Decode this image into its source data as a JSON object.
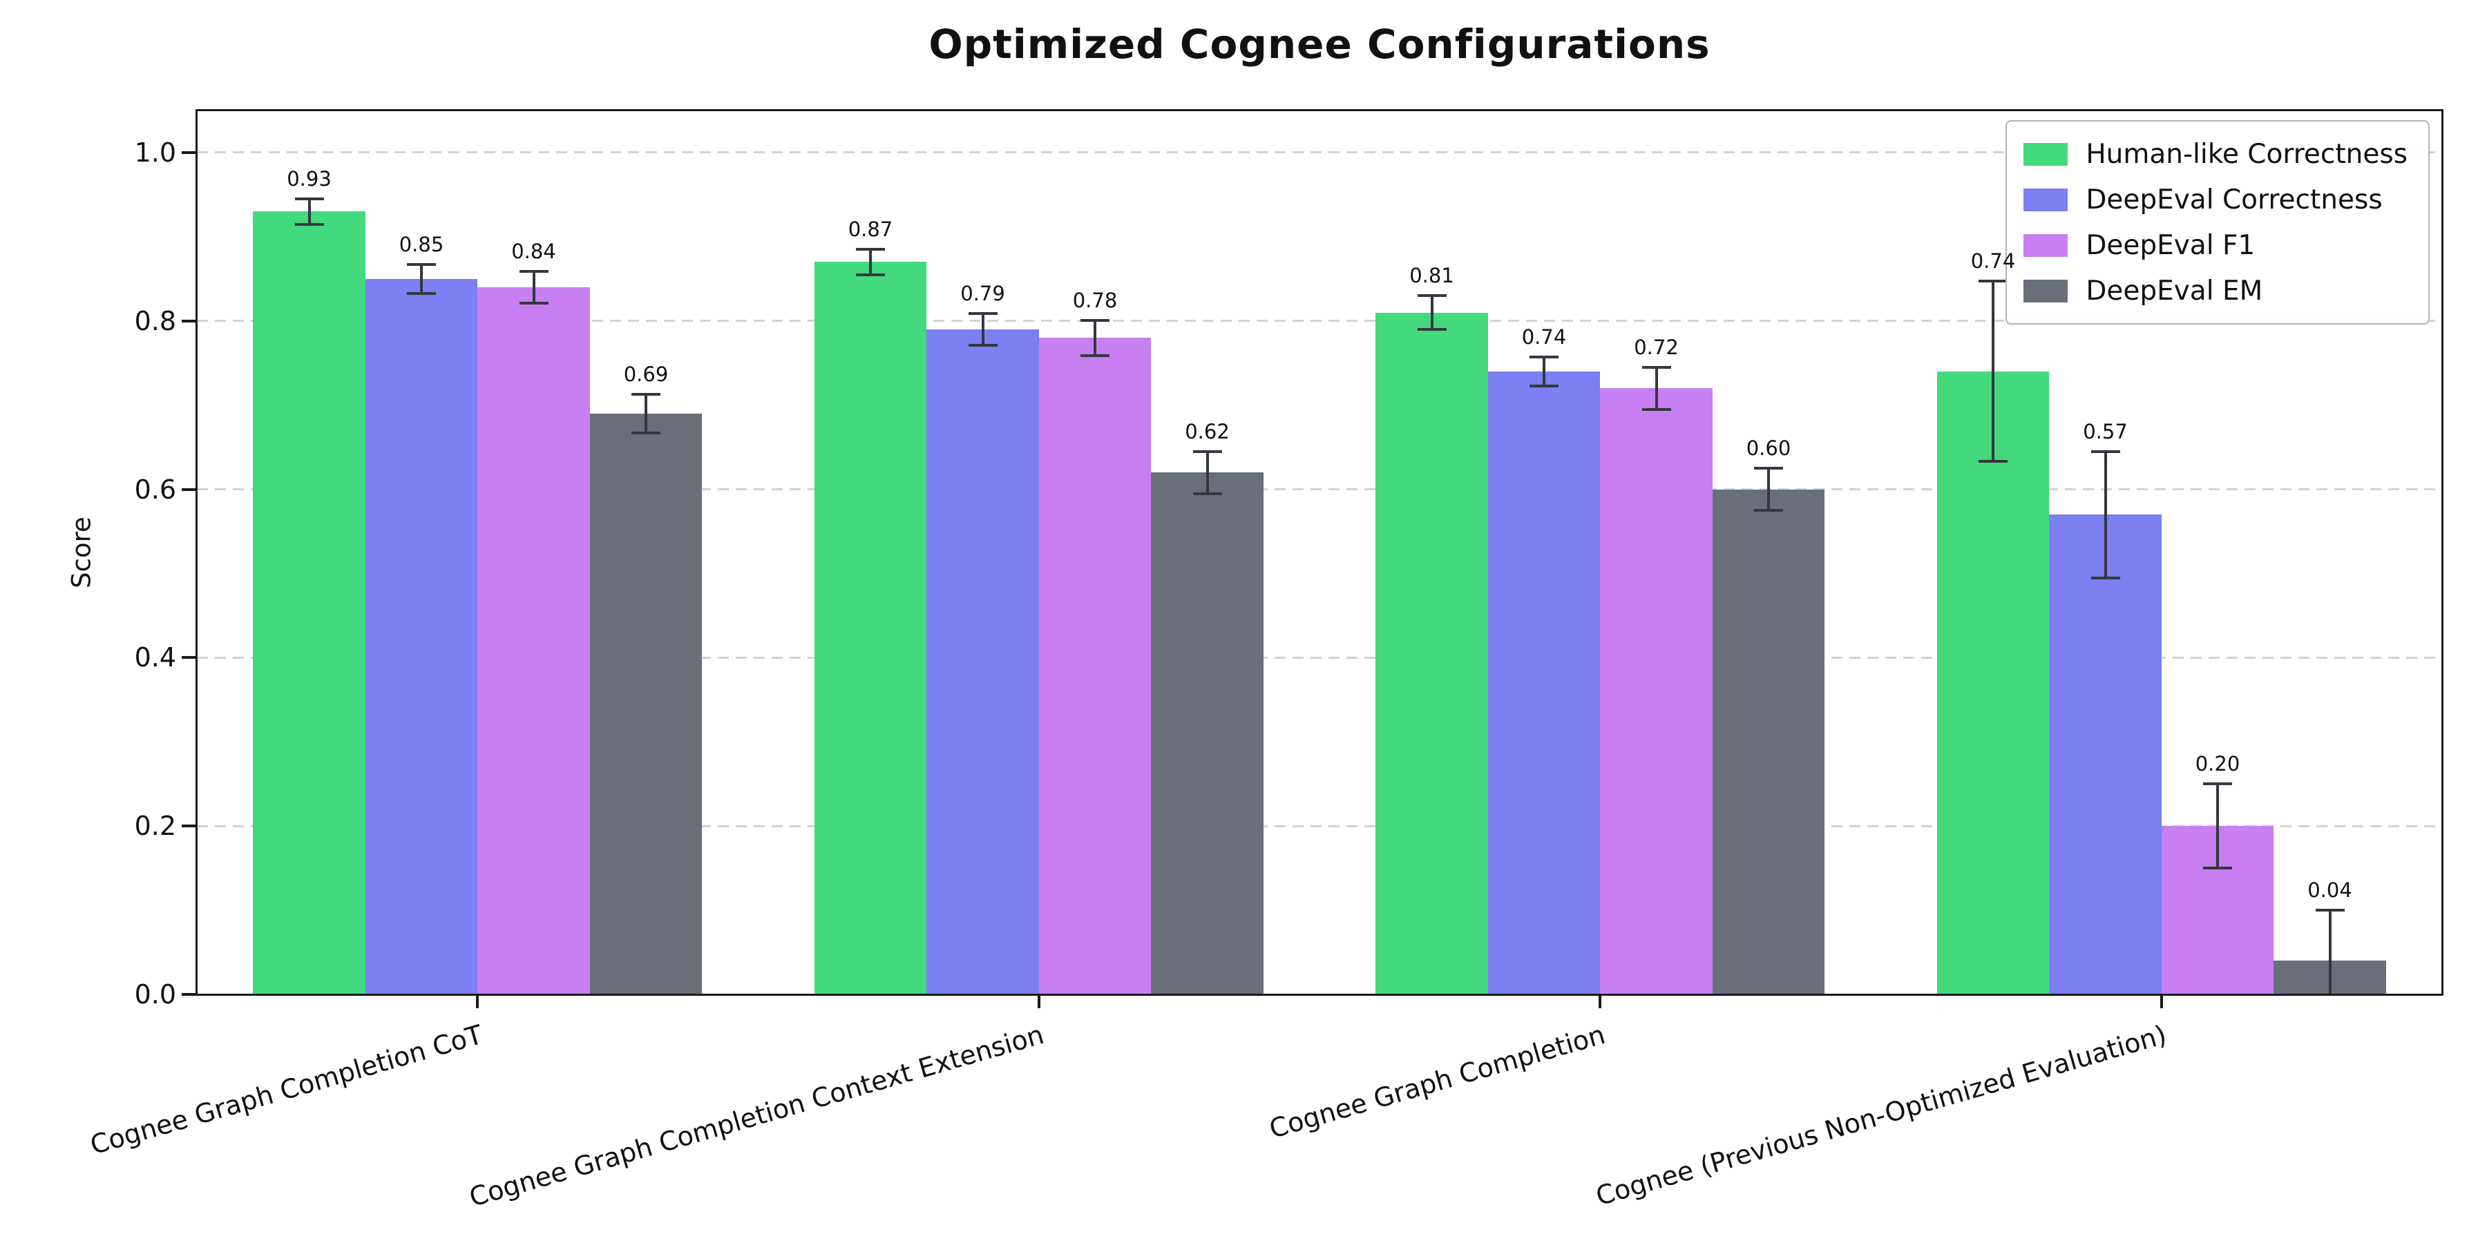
{
  "chart_data": {
    "type": "bar",
    "title": "Optimized Cognee Configurations",
    "xlabel": "",
    "ylabel": "Score",
    "ylim": [
      0,
      1.05
    ],
    "yticks": [
      0.0,
      0.2,
      0.4,
      0.6,
      0.8,
      1.0
    ],
    "grid": "horizontal-dashed",
    "legend_position": "upper-right",
    "background_color": "#ffffff",
    "error_bar_color": "#34373e",
    "categories": [
      "Cognee Graph Completion CoT",
      "Cognee Graph Completion Context Extension",
      "Cognee Graph Completion",
      "Cognee (Previous Non-Optimized Evaluation)"
    ],
    "series": [
      {
        "name": "Human-like Correctness",
        "color": "#43d97d",
        "values": [
          0.93,
          0.87,
          0.81,
          0.74
        ],
        "errors": [
          0.015,
          0.015,
          0.02,
          0.107
        ]
      },
      {
        "name": "DeepEval Correctness",
        "color": "#7c80f2",
        "values": [
          0.85,
          0.79,
          0.74,
          0.57
        ],
        "errors": [
          0.017,
          0.019,
          0.017,
          0.075
        ]
      },
      {
        "name": "DeepEval F1",
        "color": "#c77ff2",
        "values": [
          0.84,
          0.78,
          0.72,
          0.2
        ],
        "errors": [
          0.019,
          0.021,
          0.025,
          0.05
        ]
      },
      {
        "name": "DeepEval EM",
        "color": "#6a6e79",
        "values": [
          0.69,
          0.62,
          0.6,
          0.04
        ],
        "errors": [
          0.023,
          0.025,
          0.025,
          0.06
        ]
      }
    ]
  }
}
